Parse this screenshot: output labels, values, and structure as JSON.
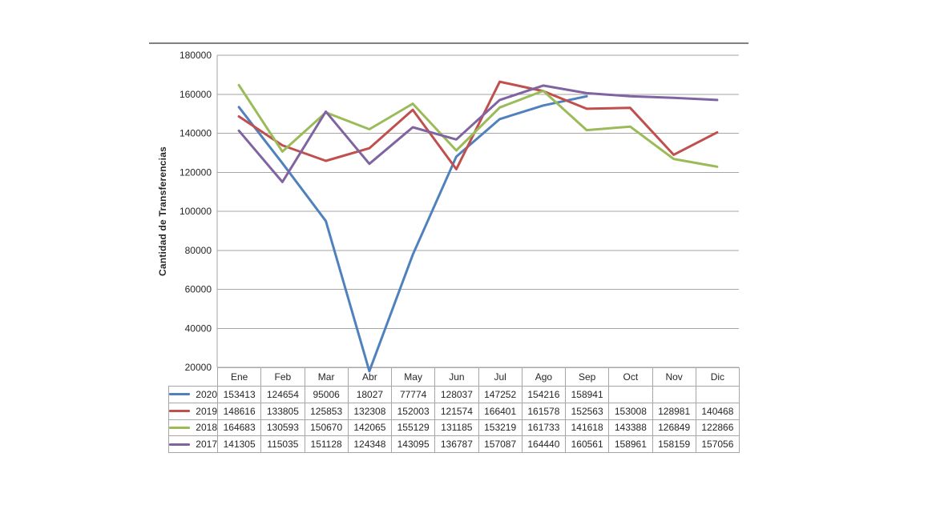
{
  "page": {
    "background": "#ffffff"
  },
  "chart_data": {
    "type": "line",
    "title": "",
    "xlabel": "",
    "ylabel": "Cantidad de Transferencias",
    "ylim": [
      20000,
      180000
    ],
    "yticks": [
      180000,
      160000,
      140000,
      120000,
      100000,
      80000,
      60000,
      40000,
      20000
    ],
    "grid": "horizontal",
    "legend_position": "table-left",
    "categories": [
      "Ene",
      "Feb",
      "Mar",
      "Abr",
      "May",
      "Jun",
      "Jul",
      "Ago",
      "Sep",
      "Oct",
      "Nov",
      "Dic"
    ],
    "series": [
      {
        "name": "2020",
        "color": "#4F81BD",
        "values": [
          153413,
          124654,
          95006,
          18027,
          77774,
          128037,
          147252,
          154216,
          158941,
          null,
          null,
          null
        ]
      },
      {
        "name": "2019",
        "color": "#C0504D",
        "values": [
          148616,
          133805,
          125853,
          132308,
          152003,
          121574,
          166401,
          161578,
          152563,
          153008,
          128981,
          140468
        ]
      },
      {
        "name": "2018",
        "color": "#9BBB59",
        "values": [
          164683,
          130593,
          150670,
          142065,
          155129,
          131185,
          153219,
          161733,
          141618,
          143388,
          126849,
          122866
        ]
      },
      {
        "name": "2017",
        "color": "#8064A2",
        "values": [
          141305,
          115035,
          151128,
          124348,
          143095,
          136787,
          157087,
          164440,
          160561,
          158961,
          158159,
          157056
        ]
      }
    ]
  },
  "colors": {
    "gridline": "#A6A6A6",
    "table_border": "#A6A6A6",
    "divider": "#808080",
    "text": "#262626"
  }
}
